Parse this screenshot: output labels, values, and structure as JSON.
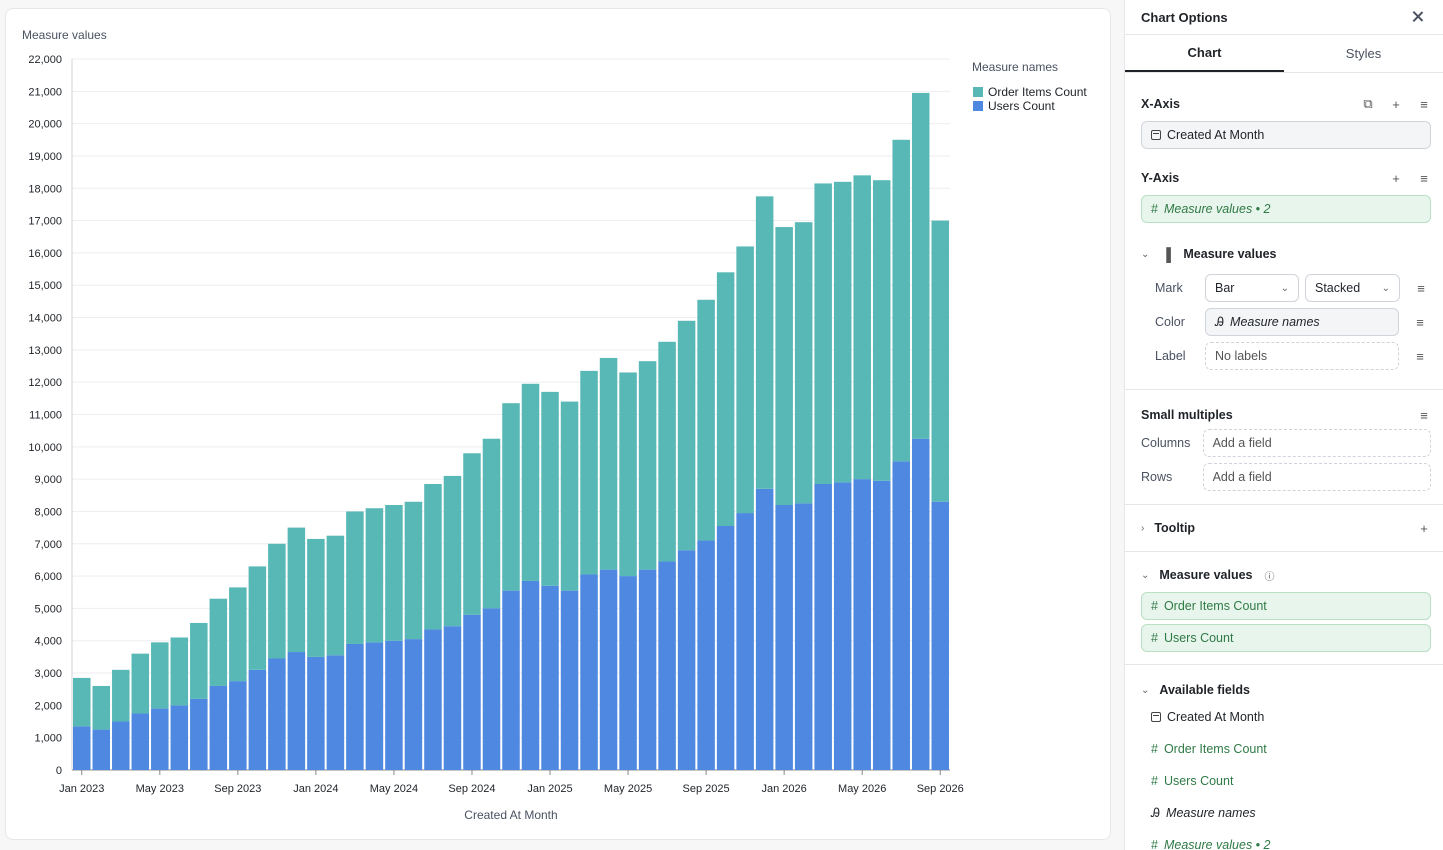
{
  "chart_data": {
    "type": "bar",
    "stacked": true,
    "ylabel": "Measure values",
    "xlabel": "Created At Month",
    "ylim": [
      0,
      22000
    ],
    "yticks": [
      "0",
      "1,000",
      "2,000",
      "3,000",
      "4,000",
      "5,000",
      "6,000",
      "7,000",
      "8,000",
      "9,000",
      "10,000",
      "11,000",
      "12,000",
      "13,000",
      "14,000",
      "15,000",
      "16,000",
      "17,000",
      "18,000",
      "19,000",
      "20,000",
      "21,000",
      "22,000"
    ],
    "xtick_labels": [
      "Jan 2023",
      "May 2023",
      "Sep 2023",
      "Jan 2024",
      "May 2024",
      "Sep 2024",
      "Jan 2025",
      "May 2025",
      "Sep 2025",
      "Jan 2026",
      "May 2026",
      "Sep 2026"
    ],
    "legend_title": "Measure names",
    "legend_position": "top-right",
    "categories": [
      "Jan 2023",
      "Feb 2023",
      "Mar 2023",
      "Apr 2023",
      "May 2023",
      "Jun 2023",
      "Jul 2023",
      "Aug 2023",
      "Sep 2023",
      "Oct 2023",
      "Nov 2023",
      "Dec 2023",
      "Jan 2024",
      "Feb 2024",
      "Mar 2024",
      "Apr 2024",
      "May 2024",
      "Jun 2024",
      "Jul 2024",
      "Aug 2024",
      "Sep 2024",
      "Oct 2024",
      "Nov 2024",
      "Dec 2024",
      "Jan 2025",
      "Feb 2025",
      "Mar 2025",
      "Apr 2025",
      "May 2025",
      "Jun 2025",
      "Jul 2025",
      "Aug 2025",
      "Sep 2025",
      "Oct 2025",
      "Nov 2025",
      "Dec 2025",
      "Jan 2026",
      "Feb 2026",
      "Mar 2026",
      "Apr 2026",
      "May 2026",
      "Jun 2026",
      "Jul 2026",
      "Aug 2026",
      "Sep 2026"
    ],
    "series": [
      {
        "name": "Users Count",
        "color": "#4f88e0",
        "values": [
          1350,
          1250,
          1500,
          1750,
          1900,
          2000,
          2200,
          2600,
          2750,
          3100,
          3450,
          3650,
          3500,
          3550,
          3900,
          3950,
          4000,
          4050,
          4350,
          4450,
          4800,
          5000,
          5550,
          5850,
          5700,
          5550,
          6050,
          6200,
          6000,
          6200,
          6450,
          6800,
          7100,
          7550,
          7950,
          8700,
          8200,
          8250,
          8850,
          8900,
          9000,
          8950,
          9550,
          10250,
          8300
        ]
      },
      {
        "name": "Order Items Count",
        "color": "#58b8b6",
        "values": [
          1500,
          1350,
          1600,
          1850,
          2050,
          2100,
          2350,
          2700,
          2900,
          3200,
          3550,
          3850,
          3650,
          3700,
          4100,
          4150,
          4200,
          4250,
          4500,
          4650,
          5000,
          5250,
          5800,
          6100,
          6000,
          5850,
          6300,
          6550,
          6300,
          6450,
          6800,
          7100,
          7450,
          7850,
          8250,
          9050,
          8600,
          8700,
          9300,
          9300,
          9400,
          9300,
          9950,
          10700,
          8700
        ]
      }
    ]
  },
  "panel": {
    "title": "Chart Options",
    "tabs": [
      "Chart",
      "Styles"
    ],
    "x_axis": {
      "title": "X-Axis",
      "field": "Created At Month"
    },
    "y_axis": {
      "title": "Y-Axis",
      "field": "Measure values • 2"
    },
    "measure_group": {
      "title": "Measure values",
      "mark_label": "Mark",
      "mark_value": "Bar",
      "stack_value": "Stacked",
      "color_label": "Color",
      "color_value": "Measure names",
      "label_label": "Label",
      "label_value": "No labels"
    },
    "small_multiples": {
      "title": "Small multiples",
      "columns_label": "Columns",
      "rows_label": "Rows",
      "placeholder": "Add a field"
    },
    "tooltip": {
      "title": "Tooltip"
    },
    "measure_values": {
      "title": "Measure values",
      "items": [
        "Order Items Count",
        "Users Count"
      ]
    },
    "available_fields": {
      "title": "Available fields",
      "items": [
        "Created At Month",
        "Order Items Count",
        "Users Count",
        "Measure names",
        "Measure values • 2"
      ]
    }
  }
}
